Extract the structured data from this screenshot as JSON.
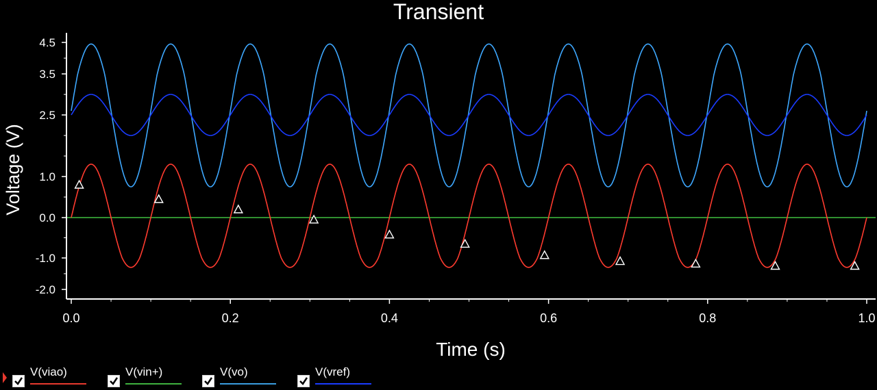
{
  "chart_data": {
    "type": "line",
    "title": "Transient",
    "xlabel": "Time (s)",
    "ylabel": "Voltage (V)",
    "xlim": [
      0.0,
      1.0
    ],
    "ylim": [
      -2.0,
      4.5
    ],
    "x_ticks": [
      "0.0",
      "0.2",
      "0.4",
      "0.6",
      "0.8",
      "1.0"
    ],
    "y_ticks": [
      {
        "value": 4.5,
        "label": "4.5"
      },
      {
        "value": 3.5,
        "label": "3.5"
      },
      {
        "value": 2.5,
        "label": "2.5"
      },
      {
        "value": 1.0,
        "label": "1.0"
      },
      {
        "value": 0.0,
        "label": "0.0"
      },
      {
        "value": -1.0,
        "label": "-1.0"
      },
      {
        "value": -2.0,
        "label": "-2.0"
      }
    ],
    "grid": false,
    "frequency_hz": 10,
    "series": [
      {
        "name": "V(viao)",
        "color": "#ff3b2f",
        "kind": "sine",
        "offset": 0.0,
        "amplitude": 1.3,
        "phase_deg": 0
      },
      {
        "name": "V(vin+)",
        "color": "#40c040",
        "kind": "constant",
        "value": 0.0
      },
      {
        "name": "V(vo)",
        "color": "#3ea8ff",
        "kind": "sine",
        "offset": 2.6,
        "amplitude": 1.85,
        "phase_deg": 0
      },
      {
        "name": "V(vref)",
        "color": "#1a3cff",
        "kind": "sine",
        "offset": 2.5,
        "amplitude": 0.5,
        "phase_deg": 0
      }
    ],
    "markers": {
      "symbol": "triangle",
      "points": [
        {
          "x": 0.01,
          "y": 0.8
        },
        {
          "x": 0.11,
          "y": 0.45
        },
        {
          "x": 0.21,
          "y": 0.2
        },
        {
          "x": 0.305,
          "y": -0.05
        },
        {
          "x": 0.4,
          "y": -0.42
        },
        {
          "x": 0.495,
          "y": -0.65
        },
        {
          "x": 0.595,
          "y": -0.93
        },
        {
          "x": 0.69,
          "y": -1.1
        },
        {
          "x": 0.785,
          "y": -1.18
        },
        {
          "x": 0.885,
          "y": -1.25
        },
        {
          "x": 0.985,
          "y": -1.25
        }
      ]
    }
  },
  "legend": [
    {
      "label": "V(viao)",
      "color": "#e8392e",
      "checked": true
    },
    {
      "label": "V(vin+)",
      "color": "#3fb23f",
      "checked": true
    },
    {
      "label": "V(vo)",
      "color": "#3b9de0",
      "checked": true
    },
    {
      "label": "V(vref)",
      "color": "#1a3cff",
      "checked": true
    }
  ]
}
